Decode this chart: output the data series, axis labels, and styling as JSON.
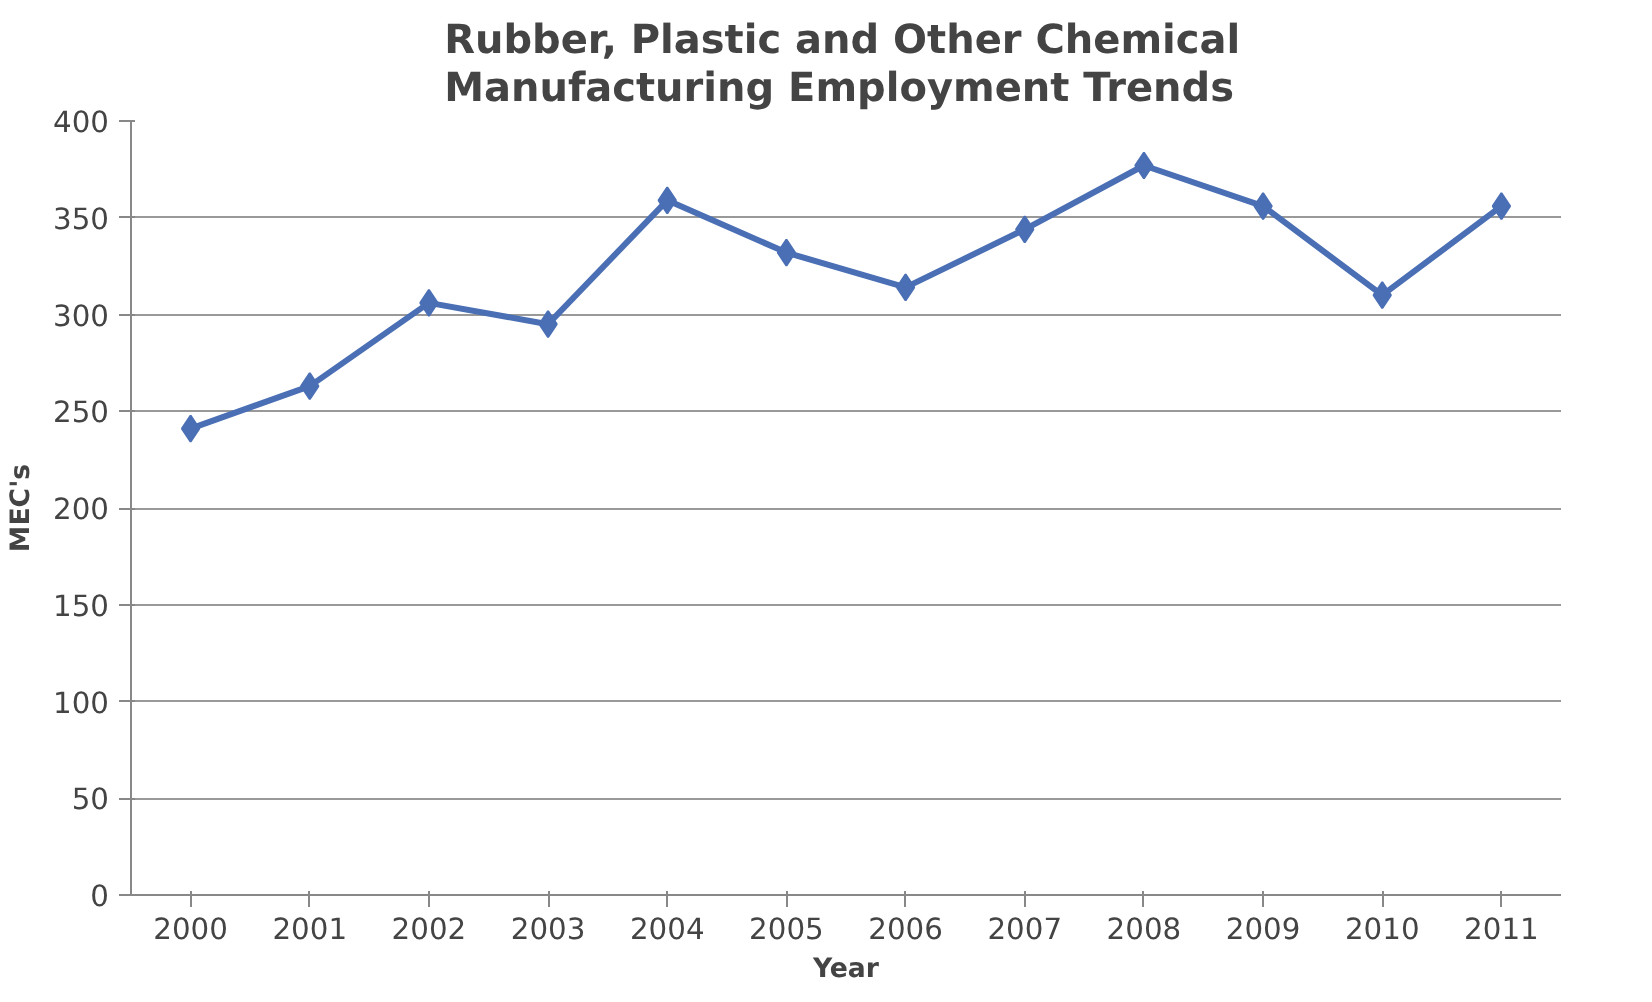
{
  "chart_data": {
    "type": "line",
    "title": "Rubber, Plastic and Other Chemical\nManufacturing  Employment Trends",
    "xlabel": "Year",
    "ylabel": "MEC's",
    "categories": [
      "2000",
      "2001",
      "2002",
      "2003",
      "2004",
      "2005",
      "2006",
      "2007",
      "2008",
      "2009",
      "2010",
      "2011"
    ],
    "series": [
      {
        "color": "#4a6fb5",
        "values": [
          241,
          263,
          306,
          295,
          359,
          332,
          314,
          344,
          377,
          356,
          310,
          356
        ]
      }
    ],
    "ylim": [
      0,
      400
    ],
    "yticks": [
      0,
      50,
      100,
      150,
      200,
      250,
      300,
      350,
      400
    ],
    "grid": "y",
    "marker": "diamond",
    "line_style": "solid"
  }
}
